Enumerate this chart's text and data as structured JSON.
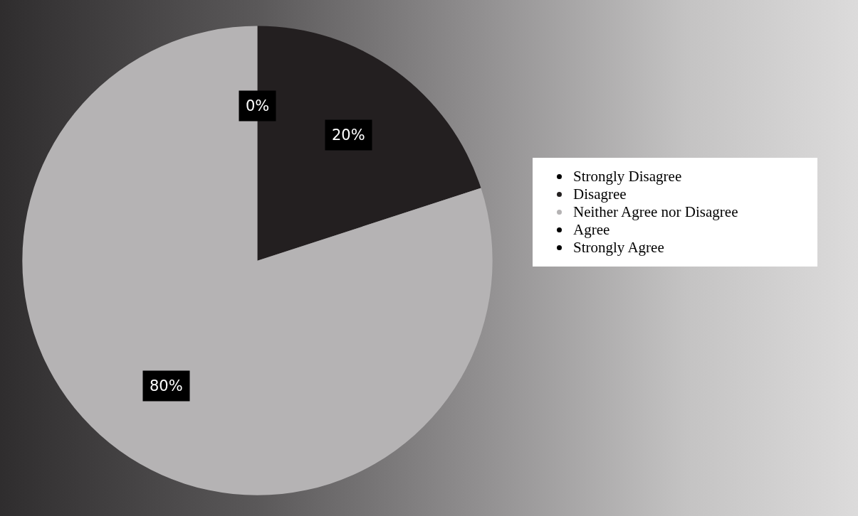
{
  "chart_data": {
    "type": "pie",
    "categories": [
      "Strongly Disagree",
      "Disagree",
      "Neither Agree nor Disagree",
      "Agree",
      "Strongly Agree"
    ],
    "values": [
      0,
      20,
      80,
      0,
      0
    ],
    "colors": [
      "#000000",
      "#231f20",
      "#b5b3b4",
      "#000000",
      "#000000"
    ],
    "value_labels": [
      "0%",
      "20%",
      "80%",
      null,
      null
    ],
    "legend": "right"
  }
}
